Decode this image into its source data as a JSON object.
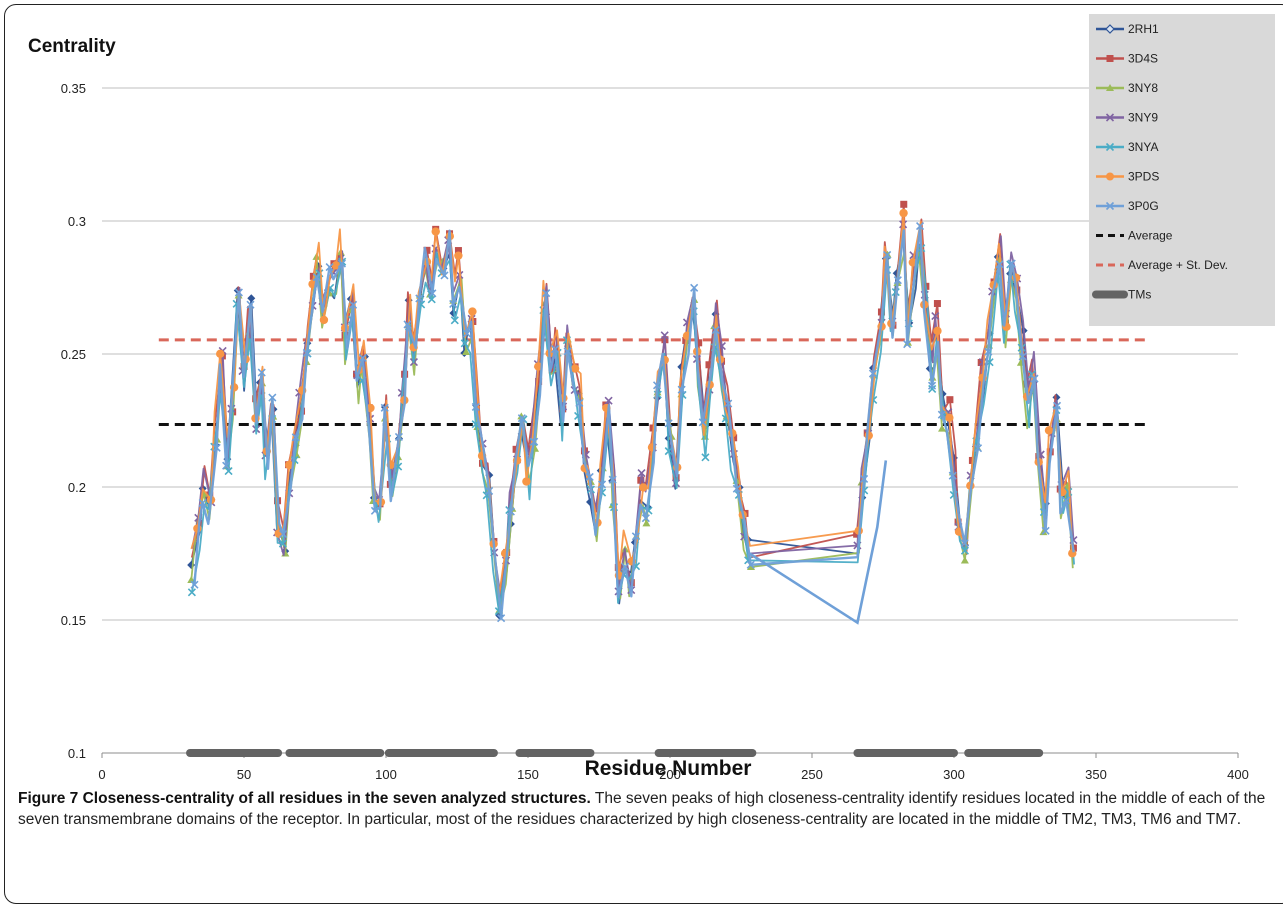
{
  "chart_data": {
    "type": "line",
    "title": "",
    "ylabel": "Centrality",
    "xlabel": "Residue Number",
    "xlim": [
      0,
      400
    ],
    "ylim": [
      0.1,
      0.35
    ],
    "x_ticks": [
      0,
      50,
      100,
      150,
      200,
      250,
      300,
      350,
      400
    ],
    "y_ticks": [
      0.1,
      0.15,
      0.2,
      0.25,
      0.3,
      0.35
    ],
    "y_tick_labels": [
      "0.1",
      "0.15",
      "0.2",
      "0.25",
      "0.3",
      "0.35"
    ],
    "grid": "horizontal",
    "legend_position": "top-right",
    "series": [
      {
        "name": "2RH1",
        "color": "#2f5597",
        "marker": "diamond"
      },
      {
        "name": "3D4S",
        "color": "#c0504d",
        "marker": "square"
      },
      {
        "name": "3NY8",
        "color": "#9bbb59",
        "marker": "triangle"
      },
      {
        "name": "3NY9",
        "color": "#8064a2",
        "marker": "x"
      },
      {
        "name": "3NYA",
        "color": "#4bacc6",
        "marker": "star"
      },
      {
        "name": "3PDS",
        "color": "#f79646",
        "marker": "circle"
      },
      {
        "name": "3P0G",
        "color": "#6fa0d8",
        "marker": "plus"
      }
    ],
    "profile": [
      [
        32,
        0.17
      ],
      [
        34,
        0.185
      ],
      [
        36,
        0.2
      ],
      [
        38,
        0.19
      ],
      [
        40,
        0.22
      ],
      [
        42,
        0.245
      ],
      [
        44,
        0.21
      ],
      [
        46,
        0.23
      ],
      [
        48,
        0.27
      ],
      [
        50,
        0.24
      ],
      [
        52,
        0.265
      ],
      [
        54,
        0.225
      ],
      [
        56,
        0.24
      ],
      [
        58,
        0.21
      ],
      [
        60,
        0.23
      ],
      [
        62,
        0.185
      ],
      [
        64,
        0.178
      ],
      [
        66,
        0.2
      ],
      [
        68,
        0.215
      ],
      [
        70,
        0.23
      ],
      [
        72,
        0.255
      ],
      [
        74,
        0.27
      ],
      [
        76,
        0.285
      ],
      [
        78,
        0.262
      ],
      [
        80,
        0.28
      ],
      [
        82,
        0.275
      ],
      [
        84,
        0.288
      ],
      [
        86,
        0.255
      ],
      [
        88,
        0.268
      ],
      [
        90,
        0.24
      ],
      [
        92,
        0.25
      ],
      [
        94,
        0.225
      ],
      [
        96,
        0.195
      ],
      [
        98,
        0.188
      ],
      [
        100,
        0.225
      ],
      [
        102,
        0.2
      ],
      [
        104,
        0.215
      ],
      [
        106,
        0.235
      ],
      [
        108,
        0.265
      ],
      [
        110,
        0.25
      ],
      [
        112,
        0.275
      ],
      [
        114,
        0.285
      ],
      [
        116,
        0.27
      ],
      [
        118,
        0.29
      ],
      [
        120,
        0.282
      ],
      [
        122,
        0.292
      ],
      [
        124,
        0.27
      ],
      [
        126,
        0.28
      ],
      [
        128,
        0.255
      ],
      [
        130,
        0.26
      ],
      [
        132,
        0.23
      ],
      [
        134,
        0.21
      ],
      [
        136,
        0.2
      ],
      [
        138,
        0.178
      ],
      [
        140,
        0.155
      ],
      [
        142,
        0.17
      ],
      [
        144,
        0.19
      ],
      [
        146,
        0.21
      ],
      [
        148,
        0.225
      ],
      [
        150,
        0.205
      ],
      [
        152,
        0.22
      ],
      [
        154,
        0.24
      ],
      [
        156,
        0.27
      ],
      [
        158,
        0.245
      ],
      [
        160,
        0.25
      ],
      [
        162,
        0.225
      ],
      [
        164,
        0.255
      ],
      [
        166,
        0.24
      ],
      [
        168,
        0.235
      ],
      [
        170,
        0.21
      ],
      [
        172,
        0.2
      ],
      [
        174,
        0.185
      ],
      [
        176,
        0.205
      ],
      [
        178,
        0.23
      ],
      [
        180,
        0.2
      ],
      [
        182,
        0.16
      ],
      [
        184,
        0.175
      ],
      [
        186,
        0.165
      ],
      [
        188,
        0.18
      ],
      [
        190,
        0.2
      ],
      [
        192,
        0.195
      ],
      [
        194,
        0.215
      ],
      [
        196,
        0.235
      ],
      [
        198,
        0.25
      ],
      [
        200,
        0.22
      ],
      [
        202,
        0.2
      ],
      [
        204,
        0.24
      ],
      [
        206,
        0.255
      ],
      [
        208,
        0.27
      ],
      [
        210,
        0.245
      ],
      [
        212,
        0.22
      ],
      [
        214,
        0.24
      ],
      [
        216,
        0.262
      ],
      [
        218,
        0.245
      ],
      [
        220,
        0.23
      ],
      [
        222,
        0.215
      ],
      [
        224,
        0.2
      ],
      [
        226,
        0.185
      ],
      [
        228,
        0.175
      ],
      [
        266,
        0.18
      ],
      [
        268,
        0.2
      ],
      [
        270,
        0.22
      ],
      [
        272,
        0.24
      ],
      [
        274,
        0.26
      ],
      [
        276,
        0.285
      ],
      [
        278,
        0.262
      ],
      [
        280,
        0.275
      ],
      [
        282,
        0.297
      ],
      [
        284,
        0.26
      ],
      [
        286,
        0.28
      ],
      [
        288,
        0.295
      ],
      [
        290,
        0.27
      ],
      [
        292,
        0.245
      ],
      [
        294,
        0.26
      ],
      [
        296,
        0.23
      ],
      [
        298,
        0.225
      ],
      [
        300,
        0.205
      ],
      [
        302,
        0.185
      ],
      [
        304,
        0.175
      ],
      [
        306,
        0.2
      ],
      [
        308,
        0.22
      ],
      [
        310,
        0.24
      ],
      [
        312,
        0.255
      ],
      [
        314,
        0.27
      ],
      [
        316,
        0.29
      ],
      [
        318,
        0.26
      ],
      [
        320,
        0.283
      ],
      [
        322,
        0.275
      ],
      [
        324,
        0.255
      ],
      [
        326,
        0.23
      ],
      [
        328,
        0.245
      ],
      [
        330,
        0.21
      ],
      [
        332,
        0.19
      ],
      [
        334,
        0.215
      ],
      [
        336,
        0.23
      ],
      [
        338,
        0.195
      ],
      [
        340,
        0.2
      ],
      [
        342,
        0.175
      ]
    ],
    "reference_lines": [
      {
        "name": "Average",
        "value": 0.2235,
        "x_range": [
          20,
          368
        ],
        "color": "#111111",
        "dash": "10,6"
      },
      {
        "name": "Average + St. Dev.",
        "value": 0.2553,
        "x_range": [
          20,
          368
        ],
        "color": "#d9675a",
        "dash": "10,6"
      }
    ],
    "tm_segments": {
      "name": "TMs",
      "color": "#636363",
      "y": 0.1,
      "ranges": [
        [
          31,
          62
        ],
        [
          66,
          98
        ],
        [
          101,
          138
        ],
        [
          147,
          172
        ],
        [
          196,
          229
        ],
        [
          266,
          300
        ],
        [
          305,
          330
        ]
      ]
    },
    "legend_entries": [
      "2RH1",
      "3D4S",
      "3NY8",
      "3NY9",
      "3NYA",
      "3PDS",
      "3P0G",
      "Average",
      "Average + St. Dev.",
      "TMs"
    ]
  },
  "caption": {
    "label": "Figure 7",
    "title": "Closeness-centrality of all residues in the seven analyzed structures.",
    "body": "The seven peaks of high closeness-centrality identify residues located in the middle of each of the seven transmembrane domains of the receptor. In particular, most of the residues characterized by high closeness-centrality are located in the middle of TM2, TM3, TM6 and TM7."
  }
}
